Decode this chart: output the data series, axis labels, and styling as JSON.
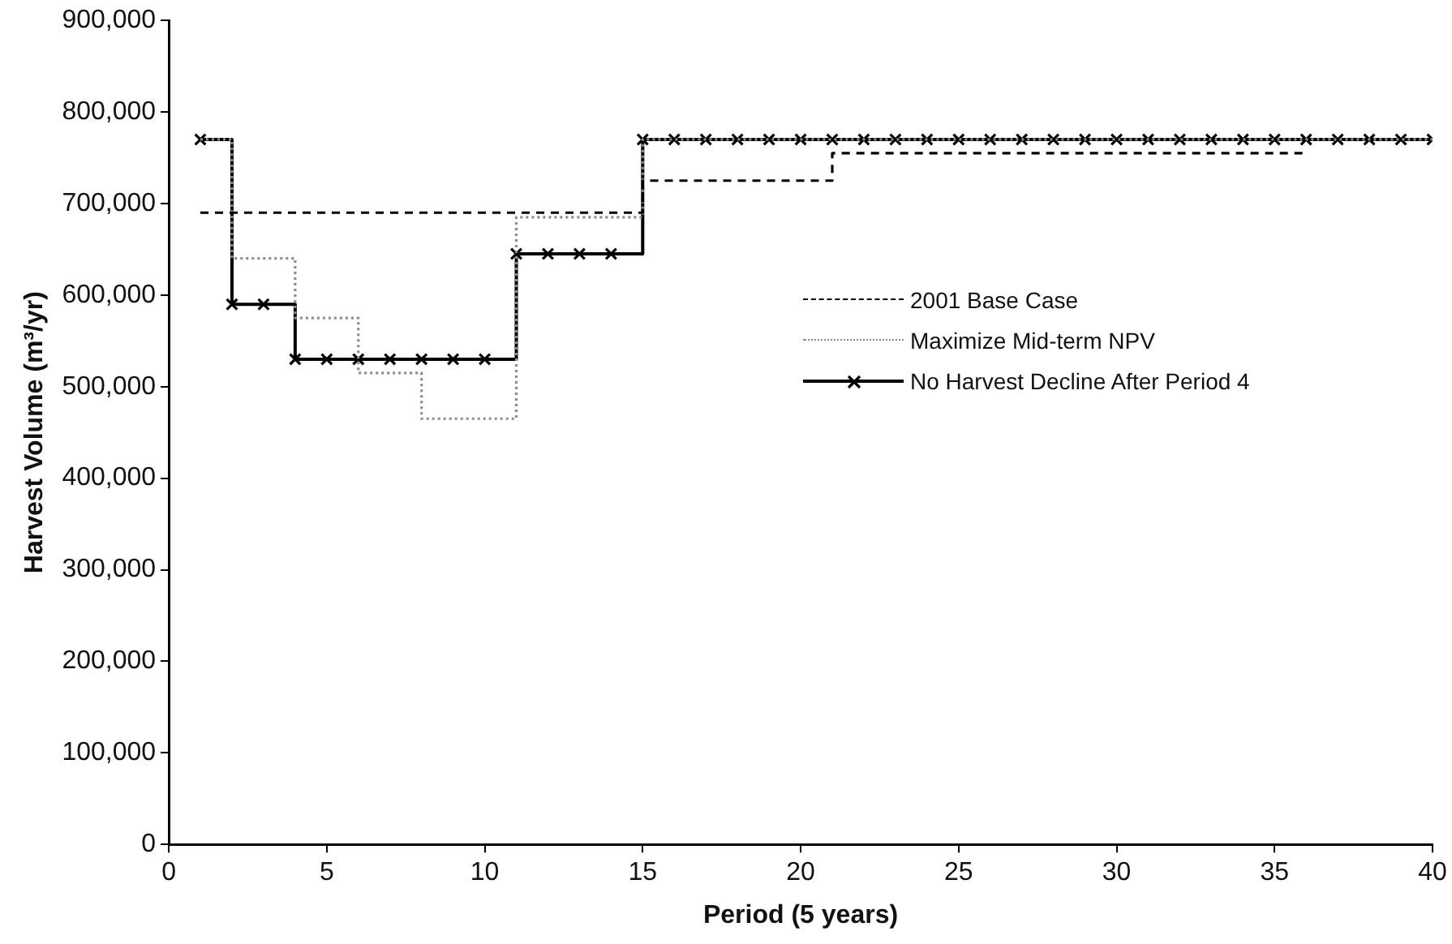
{
  "chart_data": {
    "type": "step",
    "xlabel": "Period (5 years)",
    "ylabel": "Harvest Volume (m³/yr)",
    "x": [
      1,
      2,
      3,
      4,
      5,
      6,
      7,
      8,
      9,
      10,
      11,
      12,
      13,
      14,
      15,
      16,
      17,
      18,
      19,
      20,
      21,
      22,
      23,
      24,
      25,
      26,
      27,
      28,
      29,
      30,
      31,
      32,
      33,
      34,
      35,
      36,
      37,
      38,
      39,
      40
    ],
    "xlim": [
      0,
      40
    ],
    "xticks": [
      0,
      5,
      10,
      15,
      20,
      25,
      30,
      35,
      40
    ],
    "ylim": [
      0,
      900000
    ],
    "yticks": [
      {
        "value": 0,
        "label": "0"
      },
      {
        "value": 100000,
        "label": "100,000"
      },
      {
        "value": 200000,
        "label": "200,000"
      },
      {
        "value": 300000,
        "label": "300,000"
      },
      {
        "value": 400000,
        "label": "400,000"
      },
      {
        "value": 500000,
        "label": "500,000"
      },
      {
        "value": 600000,
        "label": "600,000"
      },
      {
        "value": 700000,
        "label": "700,000"
      },
      {
        "value": 800000,
        "label": "800,000"
      },
      {
        "value": 900000,
        "label": "900,000"
      }
    ],
    "grid": false,
    "legend": "right",
    "series": [
      {
        "name": "2001 Base Case",
        "color": "#000000",
        "line_style": "dashed",
        "marker": "none",
        "values": [
          690000,
          690000,
          690000,
          690000,
          690000,
          690000,
          690000,
          690000,
          690000,
          690000,
          690000,
          690000,
          690000,
          690000,
          725000,
          725000,
          725000,
          725000,
          725000,
          725000,
          755000,
          755000,
          755000,
          755000,
          755000,
          755000,
          755000,
          755000,
          755000,
          755000,
          755000,
          755000,
          755000,
          755000,
          755000,
          755000,
          null,
          null,
          null,
          null
        ]
      },
      {
        "name": "Maximize Mid-term NPV",
        "color": "#8c8c8c",
        "line_style": "dotted",
        "marker": "none",
        "values": [
          770000,
          640000,
          640000,
          575000,
          575000,
          515000,
          515000,
          465000,
          465000,
          465000,
          685000,
          685000,
          685000,
          685000,
          770000,
          770000,
          770000,
          770000,
          770000,
          770000,
          770000,
          770000,
          770000,
          770000,
          770000,
          770000,
          770000,
          770000,
          770000,
          770000,
          770000,
          770000,
          770000,
          770000,
          770000,
          770000,
          770000,
          770000,
          770000,
          770000
        ]
      },
      {
        "name": "No Harvest Decline After Period 4",
        "color": "#000000",
        "line_style": "solid",
        "marker": "cross",
        "values": [
          770000,
          590000,
          590000,
          530000,
          530000,
          530000,
          530000,
          530000,
          530000,
          530000,
          645000,
          645000,
          645000,
          645000,
          770000,
          770000,
          770000,
          770000,
          770000,
          770000,
          770000,
          770000,
          770000,
          770000,
          770000,
          770000,
          770000,
          770000,
          770000,
          770000,
          770000,
          770000,
          770000,
          770000,
          770000,
          770000,
          770000,
          770000,
          770000,
          770000
        ]
      }
    ]
  }
}
